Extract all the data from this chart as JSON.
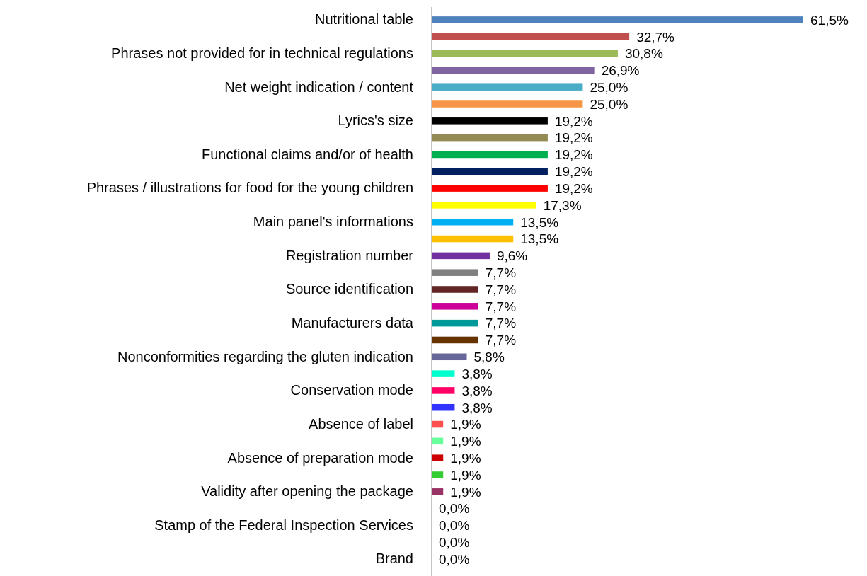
{
  "chart_data": {
    "type": "bar",
    "orientation": "horizontal",
    "categories": [
      "Nutritional table",
      null,
      "Phrases not provided for in technical regulations",
      null,
      "Net weight indication / content",
      null,
      "Lyrics's size",
      null,
      "Functional claims and/or of health",
      null,
      "Phrases / illustrations for food for the young children",
      null,
      "Main panel's informations",
      null,
      "Registration number",
      null,
      "Source identification",
      null,
      "Manufacturers data",
      null,
      "Nonconformities regarding the gluten indication",
      null,
      "Conservation mode",
      null,
      "Absence of label",
      null,
      "Absence of preparation mode",
      null,
      "Validity after opening the package",
      null,
      "Stamp of the Federal Inspection Services",
      null,
      "Brand"
    ],
    "values": [
      61.5,
      32.7,
      30.8,
      26.9,
      25.0,
      25.0,
      19.2,
      19.2,
      19.2,
      19.2,
      19.2,
      17.3,
      13.5,
      13.5,
      9.6,
      7.7,
      7.7,
      7.7,
      7.7,
      7.7,
      5.8,
      3.8,
      3.8,
      3.8,
      1.9,
      1.9,
      1.9,
      1.9,
      1.9,
      0.0,
      0.0,
      0.0,
      0.0
    ],
    "value_labels": [
      "61,5%",
      "32,7%",
      "30,8%",
      "26,9%",
      "25,0%",
      "25,0%",
      "19,2%",
      "19,2%",
      "19,2%",
      "19,2%",
      "19,2%",
      "17,3%",
      "13,5%",
      "13,5%",
      "9,6%",
      "7,7%",
      "7,7%",
      "7,7%",
      "7,7%",
      "7,7%",
      "5,8%",
      "3,8%",
      "3,8%",
      "3,8%",
      "1,9%",
      "1,9%",
      "1,9%",
      "1,9%",
      "1,9%",
      "0,0%",
      "0,0%",
      "0,0%",
      "0,0%"
    ],
    "colors": [
      "#4f81bd",
      "#c0504d",
      "#9bbb59",
      "#8064a2",
      "#4bacc6",
      "#f79646",
      "#000000",
      "#948a54",
      "#00b050",
      "#002060",
      "#ff0000",
      "#ffff00",
      "#00b0f0",
      "#ffc000",
      "#7030a0",
      "#808080",
      "#632523",
      "#cc0099",
      "#009999",
      "#663300",
      "#666699",
      "#00ffcc",
      "#ff0066",
      "#3333ff",
      "#ff5050",
      "#66ff99",
      "#cc0000",
      "#33cc33",
      "#993366",
      "#808080",
      "#808080",
      "#808080",
      "#808080"
    ]
  }
}
